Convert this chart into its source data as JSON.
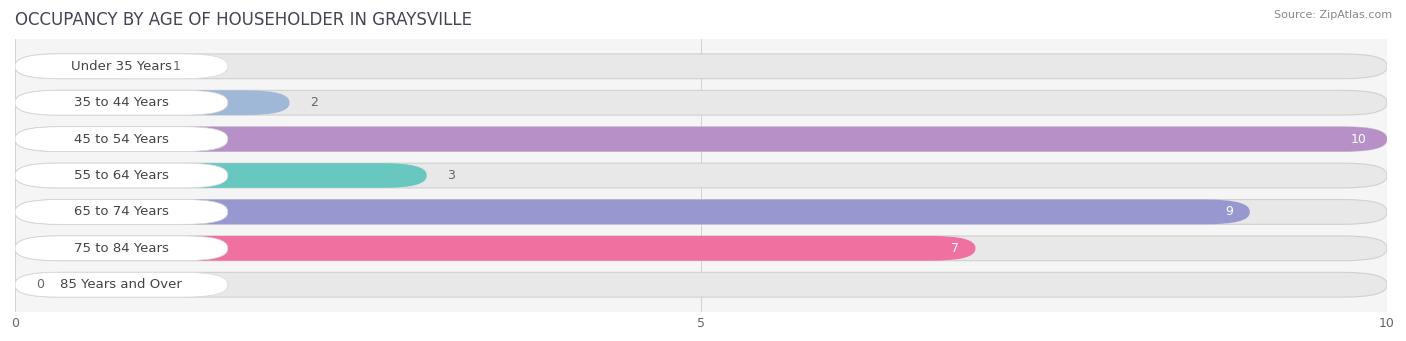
{
  "title": "OCCUPANCY BY AGE OF HOUSEHOLDER IN GRAYSVILLE",
  "source": "Source: ZipAtlas.com",
  "categories": [
    "Under 35 Years",
    "35 to 44 Years",
    "45 to 54 Years",
    "55 to 64 Years",
    "65 to 74 Years",
    "75 to 84 Years",
    "85 Years and Over"
  ],
  "values": [
    1,
    2,
    10,
    3,
    9,
    7,
    0
  ],
  "bar_colors": [
    "#f0a090",
    "#a0b8d8",
    "#b890c8",
    "#68c8c0",
    "#9898d0",
    "#f070a0",
    "#f8d098"
  ],
  "bar_bg_color": "#e8e8e8",
  "label_bg_color": "#ffffff",
  "xlim": [
    0,
    10
  ],
  "xticks": [
    0,
    5,
    10
  ],
  "title_fontsize": 12,
  "label_fontsize": 9.5,
  "value_fontsize": 9,
  "bar_height": 0.68,
  "figsize": [
    14.06,
    3.41
  ],
  "dpi": 100,
  "value_inside_threshold": 5,
  "fig_bg": "#ffffff",
  "ax_bg": "#f5f5f5"
}
